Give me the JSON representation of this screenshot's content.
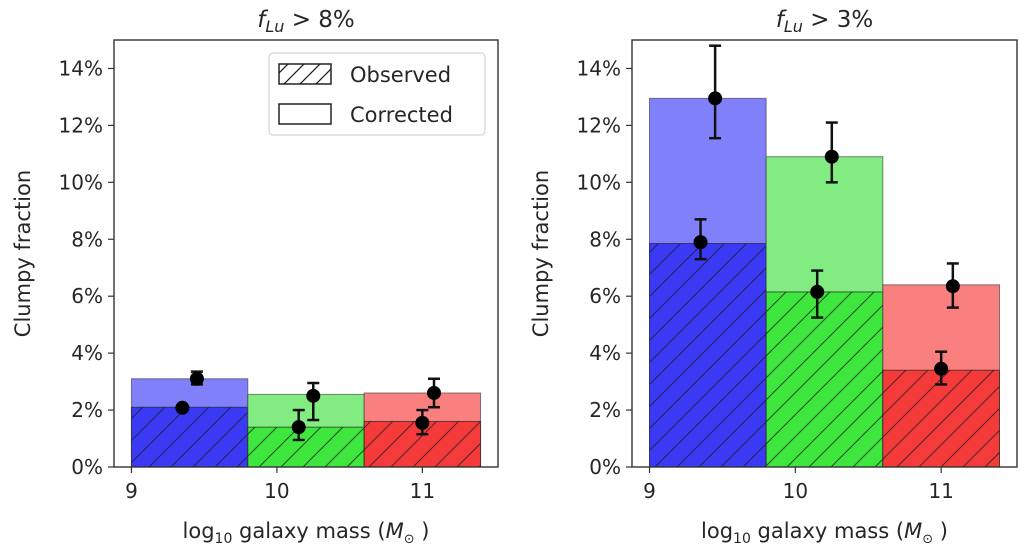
{
  "chart_data": [
    {
      "type": "bar",
      "panel": "left",
      "title": {
        "symbol": "f",
        "subscript": "Lu",
        "rest": " > 8%"
      },
      "xlabel": {
        "pre": "log",
        "sub": "10",
        "mid": " galaxy mass (",
        "sym": "M",
        "symsub": "⊙",
        "post": " )"
      },
      "ylabel": "Clumpy fraction",
      "xlim": [
        8.88,
        11.52
      ],
      "ylim": [
        0,
        15
      ],
      "xticks": [
        9,
        10,
        11
      ],
      "xtick_labels": [
        "9",
        "10",
        "11"
      ],
      "yticks": [
        0,
        2,
        4,
        6,
        8,
        10,
        12,
        14
      ],
      "ytick_labels": [
        "0%",
        "2%",
        "4%",
        "6%",
        "8%",
        "10%",
        "12%",
        "14%"
      ],
      "grid": false,
      "legend": {
        "placement": "top-right",
        "entries": [
          {
            "label": "Observed",
            "hatch": true
          },
          {
            "label": "Corrected",
            "hatch": false
          }
        ]
      },
      "bins": [
        {
          "x0": 9.0,
          "x1": 9.8,
          "color_observed": "#3a3af5",
          "color_corrected": "#8080fa",
          "observed": 2.1,
          "corrected": 3.1
        },
        {
          "x0": 9.8,
          "x1": 10.6,
          "color_observed": "#3ee63e",
          "color_corrected": "#82ec82",
          "observed": 1.4,
          "corrected": 2.55
        },
        {
          "x0": 10.6,
          "x1": 11.4,
          "color_observed": "#f53a3a",
          "color_corrected": "#fa8080",
          "observed": 1.6,
          "corrected": 2.6
        }
      ],
      "points": [
        {
          "series": "observed",
          "x": 9.35,
          "y": 2.08,
          "err_low": 0.0,
          "err_high": 0.0
        },
        {
          "series": "corrected",
          "x": 9.45,
          "y": 3.1,
          "err_low": 0.2,
          "err_high": 0.25
        },
        {
          "series": "observed",
          "x": 10.15,
          "y": 1.4,
          "err_low": 0.45,
          "err_high": 0.6
        },
        {
          "series": "corrected",
          "x": 10.25,
          "y": 2.5,
          "err_low": 0.85,
          "err_high": 0.45
        },
        {
          "series": "observed",
          "x": 11.0,
          "y": 1.55,
          "err_low": 0.4,
          "err_high": 0.45
        },
        {
          "series": "corrected",
          "x": 11.08,
          "y": 2.6,
          "err_low": 0.5,
          "err_high": 0.5
        }
      ]
    },
    {
      "type": "bar",
      "panel": "right",
      "title": {
        "symbol": "f",
        "subscript": "Lu",
        "rest": " > 3%"
      },
      "xlabel": {
        "pre": "log",
        "sub": "10",
        "mid": " galaxy mass (",
        "sym": "M",
        "symsub": "⊙",
        "post": " )"
      },
      "ylabel": "Clumpy fraction",
      "xlim": [
        8.88,
        11.52
      ],
      "ylim": [
        0,
        15
      ],
      "xticks": [
        9,
        10,
        11
      ],
      "xtick_labels": [
        "9",
        "10",
        "11"
      ],
      "yticks": [
        0,
        2,
        4,
        6,
        8,
        10,
        12,
        14
      ],
      "ytick_labels": [
        "0%",
        "2%",
        "4%",
        "6%",
        "8%",
        "10%",
        "12%",
        "14%"
      ],
      "grid": false,
      "bins": [
        {
          "x0": 9.0,
          "x1": 9.8,
          "color_observed": "#3a3af5",
          "color_corrected": "#8080fa",
          "observed": 7.85,
          "corrected": 12.95
        },
        {
          "x0": 9.8,
          "x1": 10.6,
          "color_observed": "#3ee63e",
          "color_corrected": "#82ec82",
          "observed": 6.15,
          "corrected": 10.9
        },
        {
          "x0": 10.6,
          "x1": 11.4,
          "color_observed": "#f53a3a",
          "color_corrected": "#fa8080",
          "observed": 3.4,
          "corrected": 6.4
        }
      ],
      "points": [
        {
          "series": "observed",
          "x": 9.35,
          "y": 7.9,
          "err_low": 0.6,
          "err_high": 0.8
        },
        {
          "series": "corrected",
          "x": 9.45,
          "y": 12.95,
          "err_low": 1.4,
          "err_high": 1.85
        },
        {
          "series": "observed",
          "x": 10.15,
          "y": 6.15,
          "err_low": 0.9,
          "err_high": 0.75
        },
        {
          "series": "corrected",
          "x": 10.25,
          "y": 10.9,
          "err_low": 0.9,
          "err_high": 1.2
        },
        {
          "series": "observed",
          "x": 11.0,
          "y": 3.45,
          "err_low": 0.55,
          "err_high": 0.6
        },
        {
          "series": "corrected",
          "x": 11.08,
          "y": 6.35,
          "err_low": 0.75,
          "err_high": 0.8
        }
      ]
    }
  ]
}
